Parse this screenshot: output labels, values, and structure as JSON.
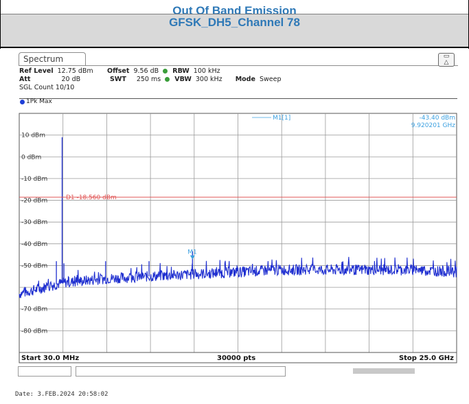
{
  "header": {
    "line1": "Out Of Band Emission",
    "line2": "GFSK_DH5_Channel 78",
    "text_color": "#2f79b7",
    "band_color": "#d9d9d9"
  },
  "instrument": {
    "tab_label": "Spectrum",
    "ref_level_label": "Ref Level",
    "ref_level_value": "12.75 dBm",
    "offset_label": "Offset",
    "offset_value": "9.56 dB",
    "rbw_label": "RBW",
    "rbw_value": "100 kHz",
    "att_label": "Att",
    "att_value": "20 dB",
    "swt_label": "SWT",
    "swt_value": "250 ms",
    "vbw_label": "VBW",
    "vbw_value": "300 kHz",
    "mode_label": "Mode",
    "mode_value": "Sweep",
    "sgl_count": "SGL Count 10/10",
    "trace_label": "1Pk Max",
    "marker_label": "M1[1]",
    "marker_level": "-43.40 dBm",
    "marker_freq": "9.920201 GHz",
    "display_line_label": "D1  -18.560 dBm",
    "start_label": "Start 30.0 MHz",
    "points_label": "30000 pts",
    "stop_label": "Stop 25.0 GHz",
    "marker_tag": "M1",
    "date_text": "Date: 3.FEB.2024  20:58:02"
  },
  "chart_data": {
    "type": "line",
    "x_start_mhz": 30.0,
    "x_stop_mhz": 25000.0,
    "ylim": [
      -90,
      20
    ],
    "y_tick_labels": [
      "10 dBm",
      "0 dBm",
      "-10 dBm",
      "-20 dBm",
      "-30 dBm",
      "-40 dBm",
      "-50 dBm",
      "-70 dBm",
      "-80 dBm"
    ],
    "grid": true,
    "display_line_dbm": -18.56,
    "noise_floor": [
      {
        "x_mhz": 30,
        "y_dbm": -63
      },
      {
        "x_mhz": 2500,
        "y_dbm": -58
      },
      {
        "x_mhz": 5000,
        "y_dbm": -56
      },
      {
        "x_mhz": 7500,
        "y_dbm": -55
      },
      {
        "x_mhz": 10000,
        "y_dbm": -54
      },
      {
        "x_mhz": 12500,
        "y_dbm": -53
      },
      {
        "x_mhz": 15000,
        "y_dbm": -52
      },
      {
        "x_mhz": 17500,
        "y_dbm": -52
      },
      {
        "x_mhz": 20000,
        "y_dbm": -52
      },
      {
        "x_mhz": 22500,
        "y_dbm": -52
      },
      {
        "x_mhz": 25000,
        "y_dbm": -53
      }
    ],
    "spikes": [
      {
        "x_mhz": 2480,
        "y_dbm": 9.0
      },
      {
        "x_mhz": 2150,
        "y_dbm": -48
      },
      {
        "x_mhz": 2580,
        "y_dbm": -49
      },
      {
        "x_mhz": 4960,
        "y_dbm": -48
      },
      {
        "x_mhz": 7440,
        "y_dbm": -48
      },
      {
        "x_mhz": 9920.2,
        "y_dbm": -43.4
      }
    ],
    "marker": {
      "name": "M1",
      "x_mhz": 9920.201,
      "y_dbm": -43.4
    },
    "trace_color": "#1f2fd0",
    "display_line_color": "#e05555",
    "marker_color": "#3ba0e0"
  }
}
